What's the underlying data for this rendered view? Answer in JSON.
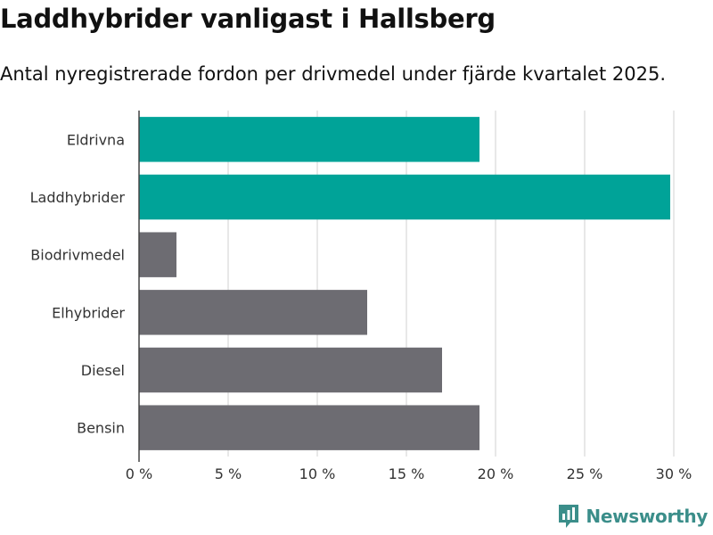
{
  "colors": {
    "accent": "#00a398",
    "neutral": "#6d6c72",
    "grid": "#d9d9d9",
    "brand": "#3b8e8a"
  },
  "brand": {
    "name": "Newsworthy",
    "logo_icon": "bar-chart-badge-icon"
  },
  "chart_data": {
    "type": "bar",
    "orientation": "horizontal",
    "title": "Laddhybrider vanligast i Hallsberg",
    "subtitle": "Antal nyregistrerade fordon per drivmedel under fjärde kvartalet 2025.",
    "xlabel": "",
    "ylabel": "",
    "xlim": [
      0,
      30
    ],
    "x_ticks": [
      0,
      5,
      10,
      15,
      20,
      25,
      30
    ],
    "tick_suffix": " %",
    "grid": true,
    "categories": [
      "Eldrivna",
      "Laddhybrider",
      "Biodrivmedel",
      "Elhybrider",
      "Diesel",
      "Bensin"
    ],
    "values": [
      19.1,
      29.8,
      2.1,
      12.8,
      17.0,
      19.1
    ],
    "highlighted": [
      true,
      true,
      false,
      false,
      false,
      false
    ]
  }
}
